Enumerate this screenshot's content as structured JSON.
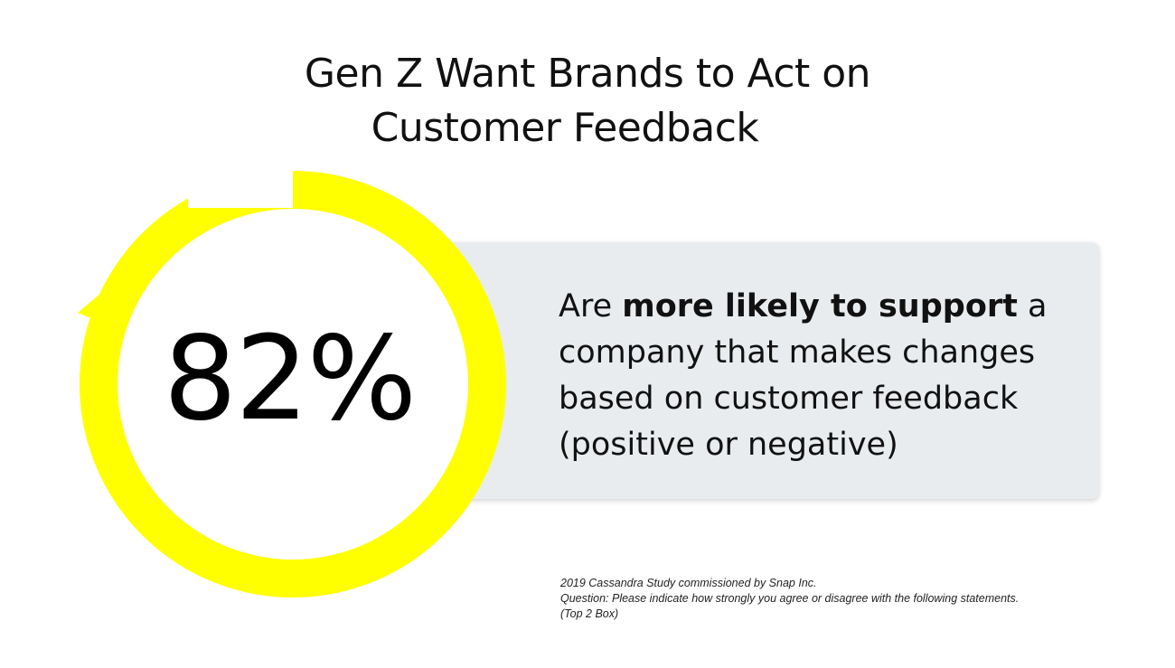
{
  "title": {
    "line1": "Gen Z Want Brands to Act on",
    "line2": "Customer Feedback"
  },
  "stat": {
    "value": "82%"
  },
  "statement": {
    "prefix": "Are ",
    "emphasis": "more likely to support",
    "line1_suffix": " a",
    "line2": "company that makes changes",
    "line3": "based on customer feedback",
    "line4": "(positive or negative)"
  },
  "footnote": {
    "line1": "2019 Cassandra Study commissioned by Snap Inc.",
    "line2": "Question: Please indicate how strongly you agree or disagree with the following statements.",
    "line3": "(Top 2 Box)"
  },
  "colors": {
    "ring": "#ffff00",
    "card": "#e9ecef",
    "text": "#111111"
  },
  "icons": {
    "ring": "circular-arrow-icon"
  }
}
